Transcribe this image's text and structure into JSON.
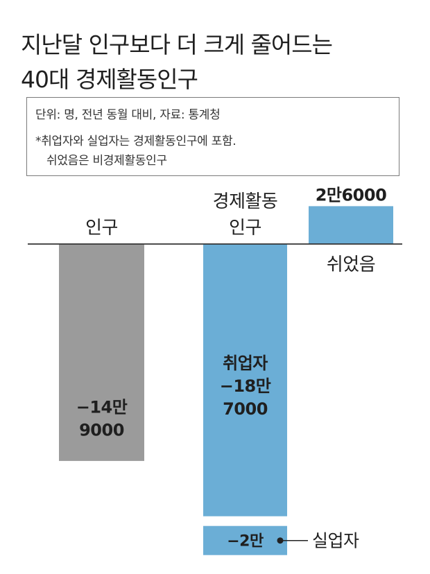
{
  "title": {
    "line1": "지난달 인구보다 더 크게 줄어드는",
    "line2": "40대 경제활동인구"
  },
  "notes": {
    "unit_source": "단위: 명, 전년 동월 대비, 자료: 통계청",
    "footnote_1": "*취업자와 실업자는 경제활동인구에 포함.",
    "footnote_2": "쉬었음은 비경제활동인구"
  },
  "colors": {
    "population": "#9b9b9b",
    "econ_active": "#6baed6",
    "text_dark": "#1f1f1f"
  },
  "chart_data": {
    "type": "bar",
    "title": "지난달 인구보다 더 크게 줄어드는 40대 경제활동인구",
    "unit": "명",
    "baseline": 0,
    "bars": [
      {
        "category": "인구",
        "label_lines": [
          "인구"
        ],
        "color": "#9b9b9b",
        "segments": [
          {
            "name": "",
            "value": -149000,
            "label_lines": [
              "−14만",
              "9000"
            ]
          }
        ]
      },
      {
        "category": "경제활동인구",
        "label_lines": [
          "경제활동",
          "인구"
        ],
        "color": "#6baed6",
        "segments": [
          {
            "name": "취업자",
            "value": -187000,
            "label_lines": [
              "취업자",
              "−18만",
              "7000"
            ]
          },
          {
            "name": "실업자",
            "value": -20000,
            "label_lines": [
              "−2만"
            ],
            "callout": "실업자"
          }
        ]
      },
      {
        "category": "쉬었음",
        "label_lines": [
          "쉬었음"
        ],
        "color": "#6baed6",
        "segments": [
          {
            "name": "쉬었음",
            "value": 26000,
            "label_lines": [
              "2만6000"
            ]
          }
        ]
      }
    ]
  }
}
